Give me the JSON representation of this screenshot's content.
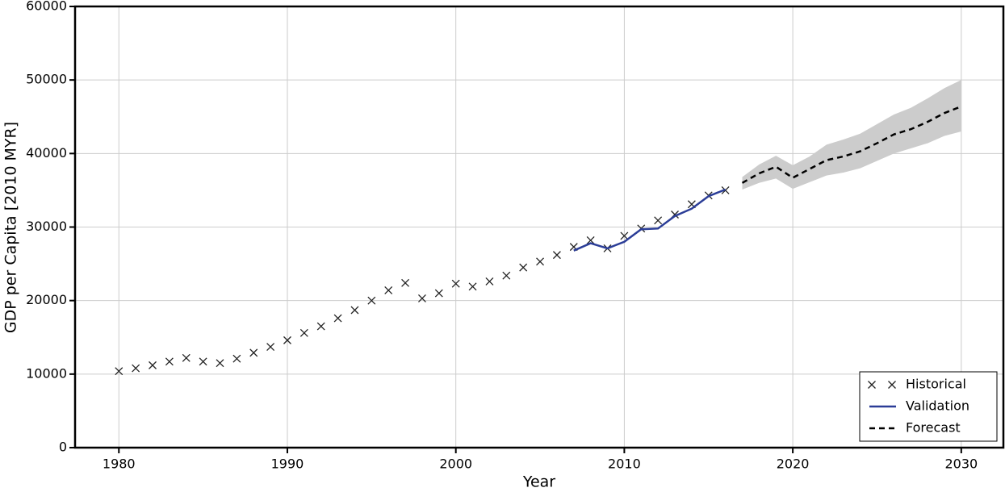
{
  "chart_data": {
    "type": "line",
    "xlabel": "Year",
    "ylabel": "GDP per Capita [2010 MYR]",
    "xlim": [
      1977.4,
      2032.5
    ],
    "ylim": [
      0,
      60000
    ],
    "xticks": [
      1980,
      1990,
      2000,
      2010,
      2020,
      2030
    ],
    "yticks": [
      0,
      10000,
      20000,
      30000,
      40000,
      50000,
      60000
    ],
    "grid": true,
    "legend": "lower right",
    "band": {
      "color": "#cccccc",
      "x": [
        2017,
        2018,
        2019,
        2020,
        2021,
        2022,
        2023,
        2024,
        2025,
        2026,
        2027,
        2028,
        2029,
        2030
      ],
      "lower": [
        35100,
        36000,
        36600,
        35200,
        36100,
        37000,
        37400,
        38000,
        39000,
        40000,
        40700,
        41400,
        42400,
        43000
      ],
      "upper": [
        36800,
        38500,
        39700,
        38400,
        39600,
        41200,
        41900,
        42700,
        44000,
        45300,
        46200,
        47500,
        48900,
        50000
      ]
    },
    "series": [
      {
        "name": "Historical",
        "color": "#222222",
        "style": "marker",
        "x": [
          1980,
          1981,
          1982,
          1983,
          1984,
          1985,
          1986,
          1987,
          1988,
          1989,
          1990,
          1991,
          1992,
          1993,
          1994,
          1995,
          1996,
          1997,
          1998,
          1999,
          2000,
          2001,
          2002,
          2003,
          2004,
          2005,
          2006,
          2007,
          2008,
          2009,
          2010,
          2011,
          2012,
          2013,
          2014,
          2015,
          2016
        ],
        "values": [
          10400,
          10800,
          11200,
          11700,
          12200,
          11700,
          11500,
          12100,
          12900,
          13700,
          14600,
          15600,
          16500,
          17600,
          18700,
          20000,
          21400,
          22400,
          20300,
          21000,
          22300,
          21900,
          22600,
          23400,
          24500,
          25300,
          26200,
          27300,
          28200,
          27100,
          28800,
          29800,
          30900,
          31700,
          33100,
          34300,
          35000
        ]
      },
      {
        "name": "Validation",
        "color": "#2b3d97",
        "style": "solid",
        "x": [
          2007,
          2008,
          2009,
          2010,
          2011,
          2012,
          2013,
          2014,
          2015,
          2016
        ],
        "values": [
          26800,
          27800,
          27100,
          28000,
          29700,
          29800,
          31500,
          32500,
          34200,
          35100
        ]
      },
      {
        "name": "Forecast",
        "color": "#000000",
        "style": "dashed",
        "x": [
          2017,
          2018,
          2019,
          2020,
          2021,
          2022,
          2023,
          2024,
          2025,
          2026,
          2027,
          2028,
          2029,
          2030
        ],
        "values": [
          36000,
          37300,
          38200,
          36700,
          37900,
          39100,
          39600,
          40300,
          41400,
          42600,
          43300,
          44300,
          45500,
          46400
        ]
      }
    ]
  }
}
